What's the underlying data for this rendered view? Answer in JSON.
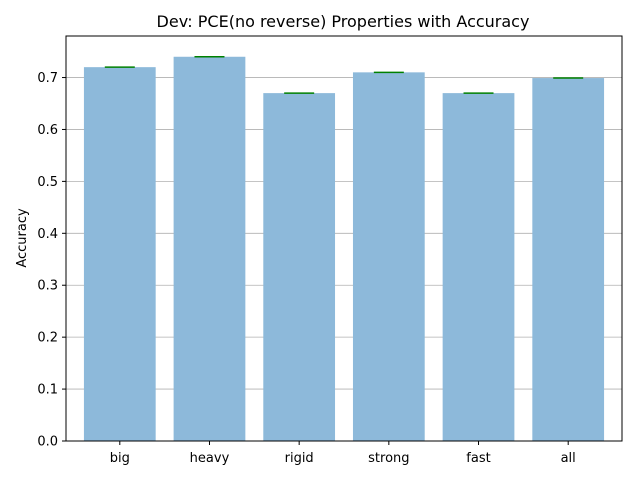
{
  "chart_data": {
    "type": "bar",
    "title": "Dev: PCE(no reverse) Properties with Accuracy",
    "xlabel": "",
    "ylabel": "Accuracy",
    "categories": [
      "big",
      "heavy",
      "rigid",
      "strong",
      "fast",
      "all"
    ],
    "values": [
      0.72,
      0.74,
      0.67,
      0.71,
      0.67,
      0.699
    ],
    "ylim": [
      0,
      0.78
    ],
    "yticks": [
      0.0,
      0.1,
      0.2,
      0.3,
      0.4,
      0.5,
      0.6,
      0.7
    ],
    "ytick_labels": [
      "0.0",
      "0.1",
      "0.2",
      "0.3",
      "0.4",
      "0.5",
      "0.6",
      "0.7"
    ],
    "grid": "horizontal",
    "bar_color": "#8db9da",
    "marker_color": "#008000",
    "grid_color": "#b0b0b0"
  }
}
